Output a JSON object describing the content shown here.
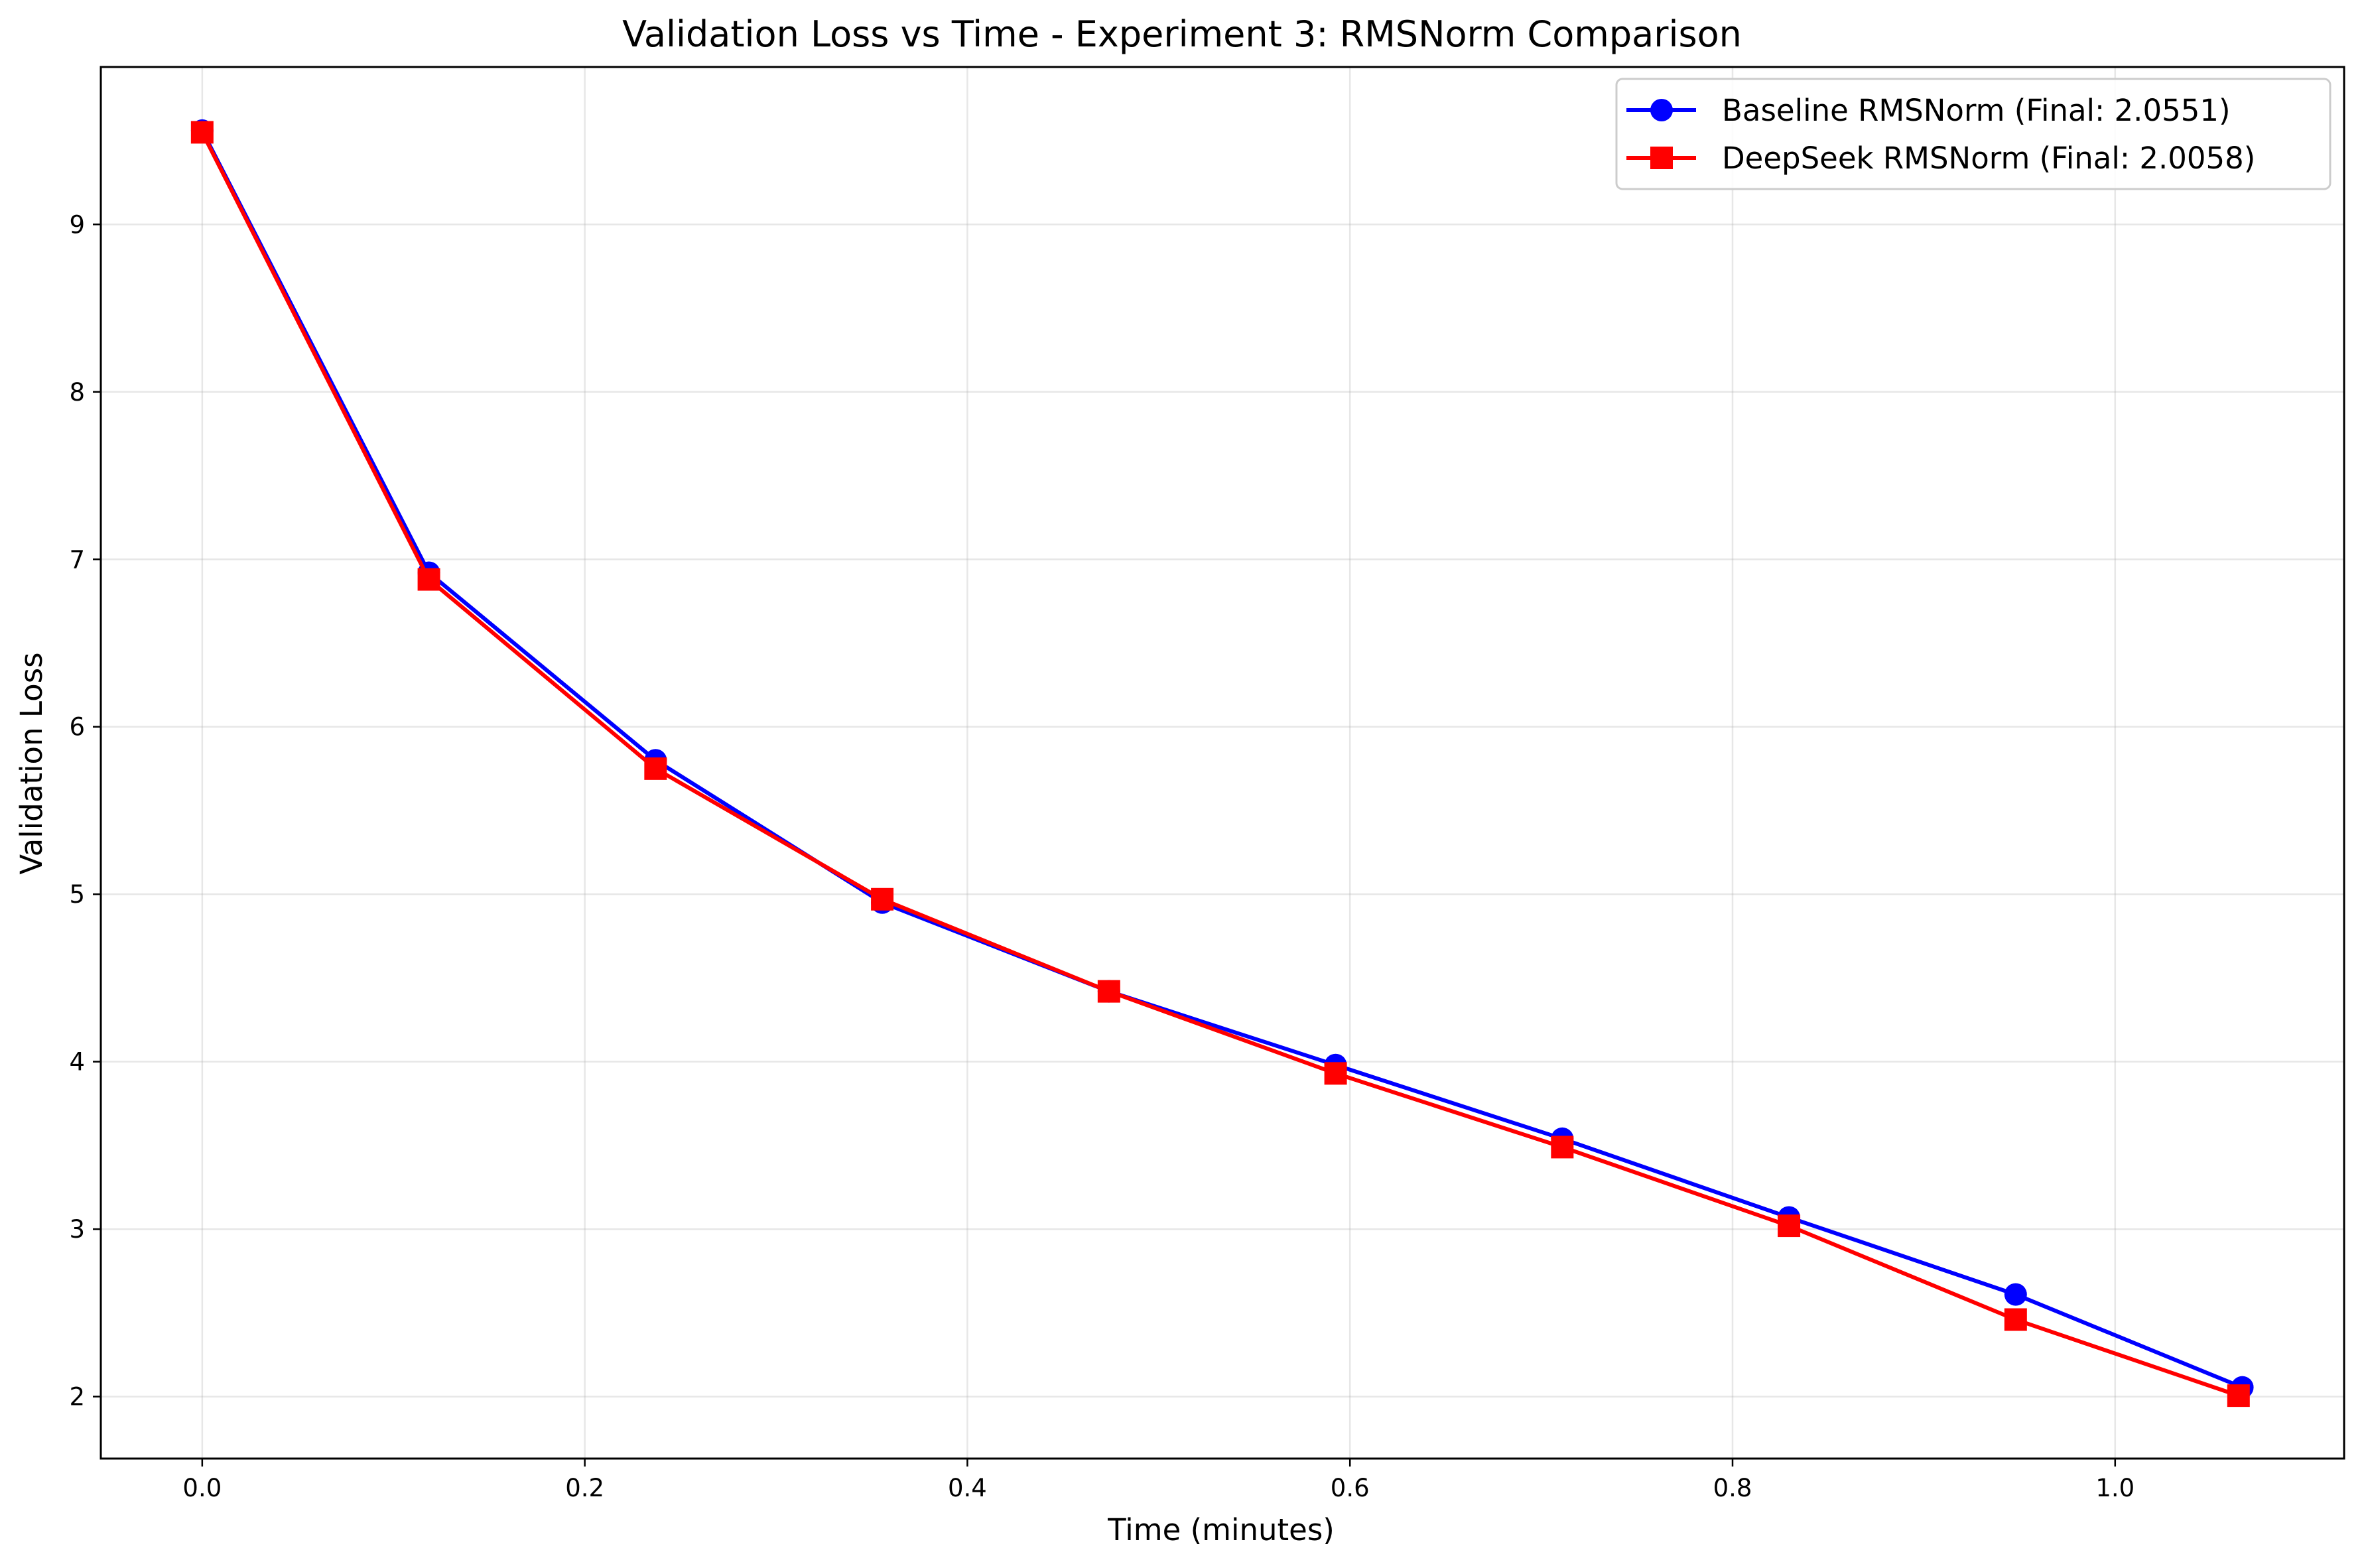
{
  "chart_data": {
    "type": "line",
    "title": "Validation Loss vs Time - Experiment 3: RMSNorm Comparison",
    "xlabel": "Time (minutes)",
    "ylabel": "Validation Loss",
    "xlim": [
      -0.053,
      1.1197
    ],
    "ylim": [
      1.63,
      9.94
    ],
    "xticks": [
      "0.0",
      "0.2",
      "0.4",
      "0.6",
      "0.8",
      "1.0"
    ],
    "yticks": [
      "2",
      "3",
      "4",
      "5",
      "6",
      "7",
      "8",
      "9"
    ],
    "grid": true,
    "legend_position": "top-right",
    "series": [
      {
        "name": "Baseline RMSNorm (Final: 2.0551)",
        "color": "#0000ff",
        "marker": "circle",
        "x": [
          0.0,
          0.1185,
          0.237,
          0.3555,
          0.474,
          0.5925,
          0.711,
          0.8295,
          0.948,
          1.0665
        ],
        "y": [
          9.56,
          6.92,
          5.8,
          4.95,
          4.42,
          3.98,
          3.54,
          3.07,
          2.61,
          2.0551
        ]
      },
      {
        "name": "DeepSeek RMSNorm (Final: 2.0058)",
        "color": "#ff0000",
        "marker": "square",
        "x": [
          0.0,
          0.1185,
          0.237,
          0.3555,
          0.474,
          0.5925,
          0.711,
          0.8295,
          0.948,
          1.0645
        ],
        "y": [
          9.55,
          6.88,
          5.75,
          4.97,
          4.42,
          3.93,
          3.49,
          3.02,
          2.46,
          2.0058
        ]
      }
    ]
  }
}
